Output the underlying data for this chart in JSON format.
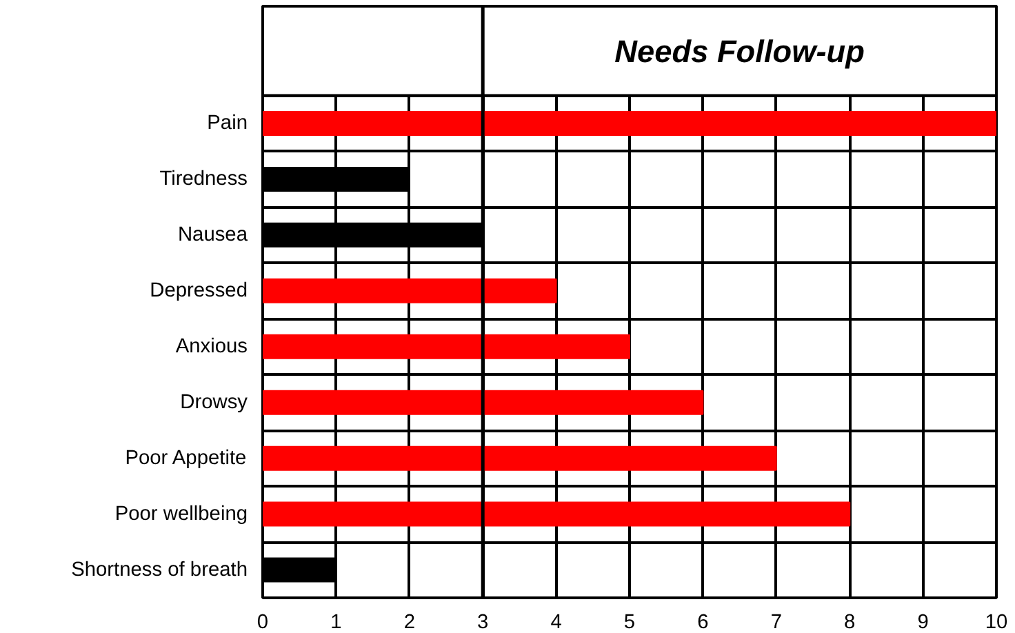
{
  "chart_data": {
    "type": "bar",
    "orientation": "horizontal",
    "categories": [
      "Pain",
      "Tiredness",
      "Nausea",
      "Depressed",
      "Anxious",
      "Drowsy",
      "Poor Appetite",
      "Poor wellbeing",
      "Shortness of breath"
    ],
    "values": [
      10,
      2,
      3,
      4,
      5,
      6,
      7,
      8,
      1
    ],
    "colors": [
      "#ff0000",
      "#000000",
      "#000000",
      "#ff0000",
      "#ff0000",
      "#ff0000",
      "#ff0000",
      "#ff0000",
      "#000000"
    ],
    "xlim": [
      0,
      10
    ],
    "xticks": [
      0,
      1,
      2,
      3,
      4,
      5,
      6,
      7,
      8,
      9,
      10
    ],
    "grid": true,
    "ref_lines": [
      {
        "axis": "x",
        "value": 3
      }
    ],
    "annotations": [
      "Needs Follow-up"
    ]
  }
}
